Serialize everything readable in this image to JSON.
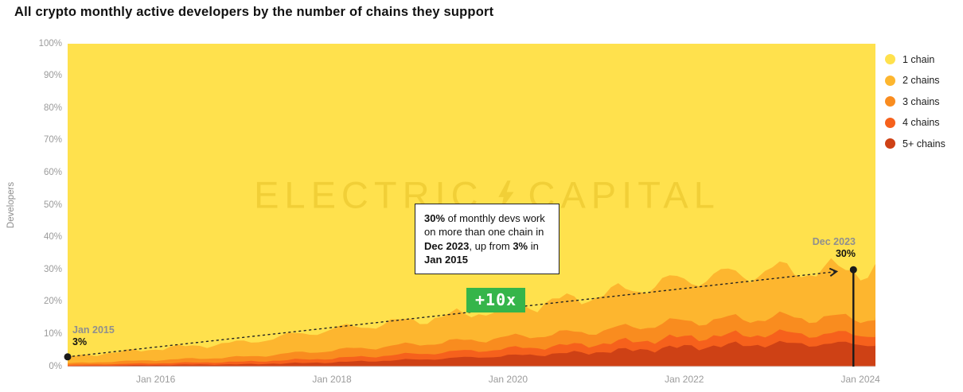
{
  "title": "All crypto monthly active developers by the number of chains they support",
  "y_axis": {
    "label": "Developers",
    "ticks": [
      "100%",
      "90%",
      "80%",
      "70%",
      "60%",
      "50%",
      "40%",
      "30%",
      "20%",
      "10%",
      "0%"
    ]
  },
  "x_axis": {
    "ticks": [
      {
        "label": "Jan 2016",
        "year": 2016
      },
      {
        "label": "Jan 2018",
        "year": 2018
      },
      {
        "label": "Jan 2020",
        "year": 2020
      },
      {
        "label": "Jan 2022",
        "year": 2022
      },
      {
        "label": "Jan 2024",
        "year": 2024
      }
    ]
  },
  "legend": {
    "items": [
      {
        "label": "1 chain",
        "color": "#FFE14D"
      },
      {
        "label": "2 chains",
        "color": "#FDB62F"
      },
      {
        "label": "3 chains",
        "color": "#F98C1F"
      },
      {
        "label": "4 chains",
        "color": "#F6611C"
      },
      {
        "label": "5+ chains",
        "color": "#CE4115"
      }
    ]
  },
  "watermark": {
    "left": "ELECTRIC",
    "right": "CAPITAL"
  },
  "annotation": {
    "segments": [
      {
        "text": "30%",
        "bold": true
      },
      {
        "text": " of monthly devs work on more than one chain in ",
        "bold": false
      },
      {
        "text": "Dec 2023",
        "bold": true
      },
      {
        "text": ", up from ",
        "bold": false
      },
      {
        "text": "3%",
        "bold": true
      },
      {
        "text": " in ",
        "bold": false
      },
      {
        "text": "Jan 2015",
        "bold": true
      }
    ]
  },
  "multiplier_label": "+10x",
  "start_marker": {
    "date": "Jan 2015",
    "value": "3%"
  },
  "end_marker": {
    "date": "Dec 2023",
    "value": "30%"
  },
  "chart_data": {
    "type": "area",
    "stacked": true,
    "normalized": "100% stacked",
    "title": "All crypto monthly active developers by the number of chains they support",
    "ylabel": "Developers",
    "ylim": [
      0,
      100
    ],
    "xlim": [
      2015.0,
      2024.17
    ],
    "grid": false,
    "legend_position": "right",
    "x": [
      2015.0,
      2016,
      2017,
      2018,
      2019,
      2020,
      2021,
      2022,
      2023,
      2023.92
    ],
    "series": [
      {
        "name": "1 chain",
        "color": "#FFE14D",
        "values": [
          97,
          94.5,
          92.5,
          88.5,
          85.5,
          82,
          78,
          73,
          70.3,
          70
        ]
      },
      {
        "name": "2 chains",
        "color": "#FDB62F",
        "values": [
          2,
          3.5,
          4.5,
          6.5,
          7.5,
          9,
          11,
          13,
          14.5,
          15
        ]
      },
      {
        "name": "3 chains",
        "color": "#F98C1F",
        "values": [
          0.5,
          1,
          1.5,
          2.5,
          3,
          3.5,
          4,
          5,
          5,
          5
        ]
      },
      {
        "name": "4 chains",
        "color": "#F6611C",
        "values": [
          0.3,
          0.5,
          0.8,
          1.2,
          1.8,
          2.2,
          2.5,
          3,
          3.2,
          3
        ]
      },
      {
        "name": "5+ chains",
        "color": "#CE4115",
        "values": [
          0.2,
          0.5,
          0.7,
          1.3,
          2.2,
          3.3,
          4.5,
          6,
          7,
          7
        ]
      }
    ],
    "annotations": {
      "trend_arrow": {
        "from": {
          "x": 2015.0,
          "y": 3
        },
        "to": {
          "x": 2023.92,
          "y": 30
        },
        "style": "dotted"
      },
      "start_point": {
        "x": 2015.0,
        "y": 3,
        "label": "Jan 2015 3%"
      },
      "end_point": {
        "x": 2023.92,
        "y": 30,
        "label": "Dec 2023 30%"
      },
      "callout": "30% of monthly devs work on more than one chain in Dec 2023, up from 3% in Jan 2015",
      "multiplier": "+10x"
    }
  }
}
